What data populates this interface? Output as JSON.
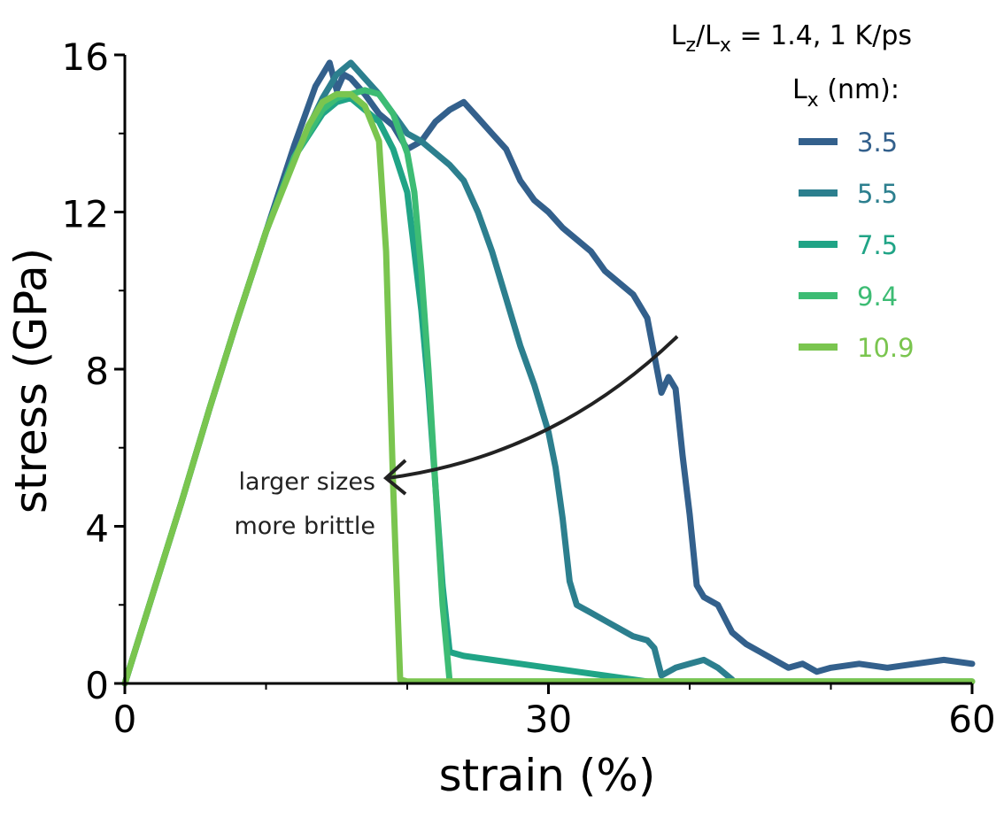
{
  "chart_data": {
    "type": "line",
    "title": "",
    "annotation_top": {
      "prefix_main": "L",
      "prefix_sub": "z",
      "slash": "/L",
      "slash_sub": "x",
      "rest": " = 1.4,  1 K/ps"
    },
    "legend_title": {
      "main": "L",
      "sub": "x",
      "rest": " (nm):"
    },
    "legend_position": "top-right",
    "xlabel": "strain (%)",
    "ylabel": "stress (GPa)",
    "xlim": [
      0,
      60
    ],
    "ylim": [
      0,
      16
    ],
    "xticks": [
      0,
      30,
      60
    ],
    "yticks": [
      0,
      4,
      8,
      12,
      16
    ],
    "xticks_minor": [
      10,
      20,
      40,
      50
    ],
    "yticks_minor": [
      2,
      6,
      10,
      14
    ],
    "grid": false,
    "arrow_text": [
      "larger sizes",
      "more brittle"
    ],
    "series": [
      {
        "name": "3.5",
        "color": "#33608c",
        "x": [
          0,
          2,
          4,
          6,
          8,
          10,
          12,
          13.5,
          14.5,
          15,
          15.5,
          16,
          17,
          18,
          19,
          20,
          21,
          22,
          23,
          24,
          25,
          26,
          27,
          28,
          29,
          30,
          31,
          32,
          33,
          34,
          35,
          36,
          37,
          38,
          38.5,
          39,
          39.5,
          40,
          40.5,
          41,
          42,
          43,
          44,
          45,
          46,
          47,
          48,
          49,
          50,
          52,
          54,
          56,
          58,
          60
        ],
        "y": [
          0,
          2.3,
          4.6,
          7.0,
          9.3,
          11.5,
          13.7,
          15.2,
          15.8,
          15.1,
          15.5,
          15.4,
          15.0,
          14.5,
          14.2,
          13.6,
          13.8,
          14.3,
          14.6,
          14.8,
          14.4,
          14.0,
          13.6,
          12.8,
          12.3,
          12.0,
          11.6,
          11.3,
          11.0,
          10.5,
          10.2,
          9.9,
          9.3,
          7.4,
          7.8,
          7.5,
          5.8,
          4.3,
          2.5,
          2.2,
          2.0,
          1.3,
          1.0,
          0.8,
          0.6,
          0.4,
          0.5,
          0.3,
          0.4,
          0.5,
          0.4,
          0.5,
          0.6,
          0.5
        ]
      },
      {
        "name": "5.5",
        "color": "#2c7f8e",
        "x": [
          0,
          2,
          4,
          6,
          8,
          10,
          12,
          14,
          15,
          16,
          17,
          18,
          19,
          20,
          21,
          22,
          23,
          24,
          25,
          26,
          27,
          28,
          29,
          30,
          30.5,
          31,
          31.5,
          32,
          33,
          34,
          35,
          36,
          37,
          37.5,
          38,
          39,
          40,
          41,
          42,
          43
        ],
        "y": [
          0,
          2.3,
          4.6,
          7.0,
          9.3,
          11.5,
          13.4,
          14.9,
          15.5,
          15.8,
          15.4,
          15.0,
          14.5,
          14.0,
          13.8,
          13.5,
          13.2,
          12.8,
          12.0,
          11.0,
          9.8,
          8.6,
          7.6,
          6.4,
          5.5,
          4.2,
          2.6,
          2.0,
          1.8,
          1.6,
          1.4,
          1.2,
          1.1,
          0.9,
          0.2,
          0.4,
          0.5,
          0.6,
          0.4,
          0.1
        ]
      },
      {
        "name": "7.5",
        "color": "#20a486",
        "x": [
          0,
          2,
          4,
          6,
          8,
          10,
          12,
          14,
          15,
          16,
          17,
          18,
          19,
          20,
          20.5,
          21,
          21.5,
          22,
          22.5,
          23,
          24,
          26,
          28,
          30,
          32,
          34,
          36,
          37
        ],
        "y": [
          0,
          2.3,
          4.6,
          7.0,
          9.3,
          11.5,
          13.4,
          14.5,
          14.8,
          14.9,
          14.6,
          14.3,
          13.6,
          12.5,
          11.0,
          9.5,
          7.5,
          5.0,
          2.5,
          0.8,
          0.7,
          0.6,
          0.5,
          0.4,
          0.3,
          0.2,
          0.1,
          0.05
        ]
      },
      {
        "name": "9.4",
        "color": "#3dbc74",
        "x": [
          0,
          2,
          4,
          6,
          8,
          10,
          12,
          14,
          15,
          16,
          17,
          18,
          19,
          20,
          20.5,
          21,
          21.5,
          22,
          22.5,
          23,
          24,
          30,
          40,
          50,
          60
        ],
        "y": [
          0,
          2.3,
          4.6,
          7.0,
          9.3,
          11.5,
          13.4,
          14.6,
          14.9,
          15.0,
          15.1,
          15.0,
          14.5,
          13.5,
          12.5,
          10.5,
          8.0,
          5.0,
          2.0,
          0.05,
          0.05,
          0.05,
          0.05,
          0.05,
          0.05
        ]
      },
      {
        "name": "10.9",
        "color": "#7ac54f",
        "x": [
          0,
          2,
          4,
          6,
          8,
          10,
          12,
          13,
          14,
          15,
          16,
          17,
          18,
          18.5,
          19,
          19.5,
          20,
          30,
          40,
          50,
          60
        ],
        "y": [
          0,
          2.3,
          4.6,
          7.0,
          9.3,
          11.5,
          13.3,
          14.2,
          14.8,
          15.0,
          15.0,
          14.7,
          13.8,
          11.0,
          5.0,
          0.1,
          0.05,
          0.05,
          0.05,
          0.05,
          0.05
        ]
      }
    ]
  }
}
